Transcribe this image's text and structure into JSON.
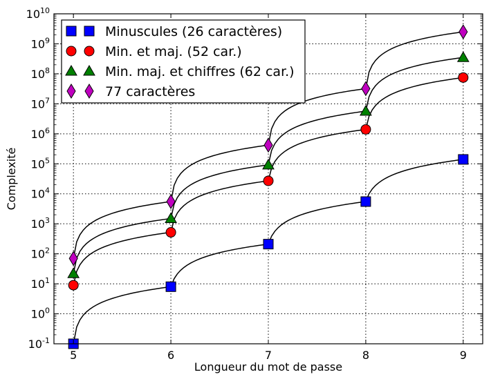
{
  "chart_data": {
    "type": "line",
    "xlabel": "Longueur du mot de passe",
    "ylabel": "Complexité",
    "xlim": [
      4.8,
      9.2
    ],
    "ylim": [
      -1,
      10
    ],
    "yscale": "log",
    "grid": true,
    "legend_position": "top-left",
    "x_ticks": [
      5,
      6,
      7,
      8,
      9
    ],
    "y_tick_exponents": [
      -1,
      0,
      1,
      2,
      3,
      4,
      5,
      6,
      7,
      8,
      9,
      10
    ],
    "y_tick_base": "10",
    "x": [
      5,
      6,
      7,
      8,
      9
    ],
    "series": [
      {
        "name": "Minuscules (26 caractères)",
        "marker": "square",
        "color": "#0000ff",
        "values": [
          0.1,
          8,
          210,
          5500,
          140000
        ]
      },
      {
        "name": "Min. et maj. (52 car.)",
        "marker": "circle",
        "color": "#ff0000",
        "values": [
          9,
          520,
          27000,
          1400000,
          75000000
        ]
      },
      {
        "name": "Min. maj. et chiffres (62 car.)",
        "marker": "triangle",
        "color": "#008000",
        "values": [
          22,
          1500,
          92000,
          5700000,
          350000000
        ]
      },
      {
        "name": "77 caractères",
        "marker": "diamond",
        "color": "#bf00bf",
        "values": [
          70,
          5500,
          420000,
          32000000,
          2500000000
        ]
      }
    ]
  }
}
